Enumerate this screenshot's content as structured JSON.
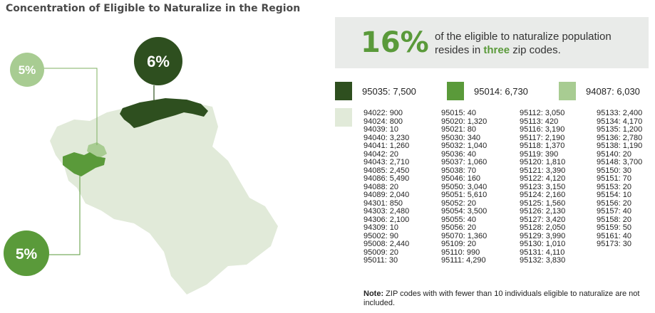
{
  "title": "Concentration of Eligible to Naturalize in the Region",
  "callout": {
    "percent": "16%",
    "text_before": "of the eligible to naturalize population resides in",
    "highlight": "three",
    "text_after": "zip codes."
  },
  "map_labels": {
    "top_left": "5%",
    "top_center": "6%",
    "bottom_left": "5%"
  },
  "colors": {
    "dark_green": "#2e4f1f",
    "mid_green": "#5a9a3a",
    "light_green": "#a8cc92",
    "pale_green": "#e1ead9",
    "banner_bg": "#e9ebe9"
  },
  "chart_data": {
    "type": "table",
    "title": "Concentration of Eligible to Naturalize in the Region",
    "highlighted_zips": [
      {
        "zip": "95035",
        "value": 7500,
        "label": "95035: 7,500"
      },
      {
        "zip": "95014",
        "value": 6730,
        "label": "95014: 6,730"
      },
      {
        "zip": "94087",
        "value": 6030,
        "label": "94087: 6,030"
      }
    ],
    "columns": [
      [
        "94022: 900",
        "94024: 800",
        "94039: 10",
        "94040: 3,230",
        "94041: 1,260",
        "94042: 20",
        "94043: 2,710",
        "94085: 2,450",
        "94086: 5,490",
        "94088: 20",
        "94089: 2,040",
        "94301: 850",
        "94303: 2,480",
        "94306: 2,100",
        "94309: 10",
        "95002: 90",
        "95008: 2,440",
        "95009: 20",
        "95011: 30"
      ],
      [
        "95015: 40",
        "95020: 1,320",
        "95021: 80",
        "95030: 340",
        "95032: 1,040",
        "95036: 40",
        "95037: 1,060",
        "95038: 70",
        "95046: 160",
        "95050: 3,040",
        "95051: 5,610",
        "95052: 20",
        "95054: 3,500",
        "95055: 40",
        "95056: 20",
        "95070: 1,360",
        "95109: 20",
        "95110: 990",
        "95111: 4,290"
      ],
      [
        "95112: 3,050",
        "95113: 420",
        "95116: 3,190",
        "95117: 2,190",
        "95118: 1,370",
        "95119: 390",
        "95120: 1,810",
        "95121: 3,390",
        "95122: 4,120",
        "95123: 3,150",
        "95124: 2,160",
        "95125: 1,560",
        "95126: 2,130",
        "95127: 3,420",
        "95128: 2,050",
        "95129: 3,990",
        "95130: 1,010",
        "95131: 4,110",
        "95132: 3,830"
      ],
      [
        "95133: 2,400",
        "95134: 4,170",
        "95135: 1,200",
        "95136: 2,780",
        "95138: 1,190",
        "95140: 20",
        "95148: 3,700",
        "95150: 30",
        "95151: 70",
        "95153: 20",
        "95154: 10",
        "95156: 20",
        "95157: 40",
        "95158: 20",
        "95159: 50",
        "95161: 40",
        "95173: 30"
      ]
    ]
  },
  "note": {
    "label": "Note:",
    "text": "ZIP codes with with fewer than 10 individuals eligible to naturalize are not included."
  }
}
